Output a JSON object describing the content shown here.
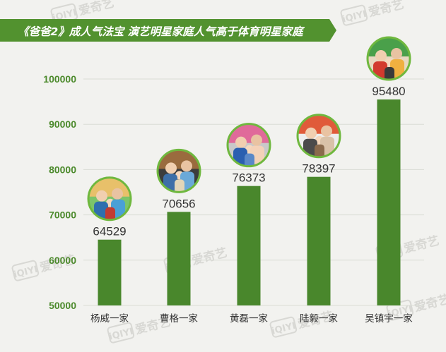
{
  "chart_data": {
    "type": "bar",
    "title": "《爸爸2》成人气法宝 演艺明星家庭人气高于体育明星家庭",
    "categories": [
      "杨威一家",
      "曹格一家",
      "黄磊一家",
      "陆毅一家",
      "吴镇宇一家"
    ],
    "values": [
      64529,
      70656,
      76373,
      78397,
      95480
    ],
    "yticks": [
      50000,
      60000,
      70000,
      80000,
      90000,
      100000
    ],
    "ylim": [
      50000,
      105000
    ],
    "grid": true,
    "legend": "none",
    "xlabel": "",
    "ylabel": ""
  },
  "colors": {
    "background": "#f2f2ef",
    "banner": "#52922f",
    "bar": "#49872c",
    "tick_text": "#4c8a2c",
    "gridline": "#d9dcd5",
    "avatar_ring": "#6fb83e",
    "watermark": "#d8d8d4"
  },
  "watermark": {
    "brand_mark": "iQIYI",
    "brand_name": "爱奇艺"
  }
}
